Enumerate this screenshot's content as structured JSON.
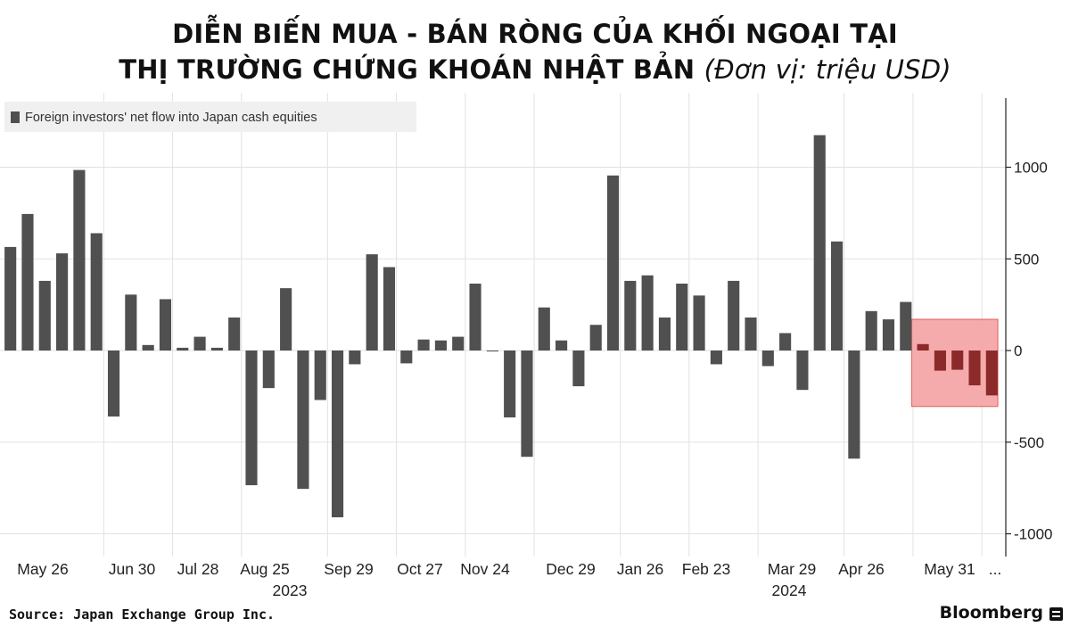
{
  "title": {
    "line1": "DIỄN BIẾN MUA - BÁN RÒNG CỦA KHỐI NGOẠI TẠI",
    "line2": "THỊ TRƯỜNG CHỨNG KHOÁN NHẬT BẢN",
    "unit": "(Đơn vị: triệu USD)"
  },
  "footer": {
    "source": "Source: Japan Exchange Group Inc.",
    "brand": "Bloomberg"
  },
  "colors": {
    "bar": "#505050",
    "bar_highlight": "#8c2a2a",
    "highlight_fill": "#f4a3a3",
    "highlight_stroke": "#e06060",
    "grid": "#e2e2e2"
  },
  "chart_data": {
    "type": "bar",
    "legend": {
      "label": "Foreign investors' net flow into Japan cash equities",
      "position": "top-left"
    },
    "y_axis": {
      "position": "right",
      "ylim": [
        -1100,
        1400
      ],
      "ticks": [
        -1000,
        -500,
        0,
        500,
        1000
      ]
    },
    "x_tick_labels": [
      "May 26",
      "Jun 30",
      "Jul 28",
      "Aug 25",
      "Sep 29",
      "Oct 27",
      "Nov 24",
      "Dec 29",
      "Jan 26",
      "Feb 23",
      "Mar 29",
      "Apr 26",
      "May 31",
      "..."
    ],
    "year_labels": [
      "2023",
      "2024"
    ],
    "grid": true,
    "values": [
      565,
      745,
      380,
      530,
      985,
      640,
      -360,
      305,
      30,
      280,
      15,
      75,
      15,
      180,
      -735,
      -205,
      340,
      -755,
      -270,
      -910,
      -75,
      525,
      455,
      -70,
      60,
      55,
      75,
      365,
      -5,
      -365,
      -580,
      235,
      55,
      -195,
      140,
      955,
      380,
      410,
      180,
      365,
      300,
      -75,
      380,
      180,
      -85,
      95,
      -215,
      1175,
      595,
      -590,
      215,
      170,
      265,
      35,
      -110,
      -105,
      -190,
      -245
    ],
    "highlight": {
      "from_index": 53,
      "to_index": 57,
      "range": [
        -305,
        170
      ]
    }
  }
}
